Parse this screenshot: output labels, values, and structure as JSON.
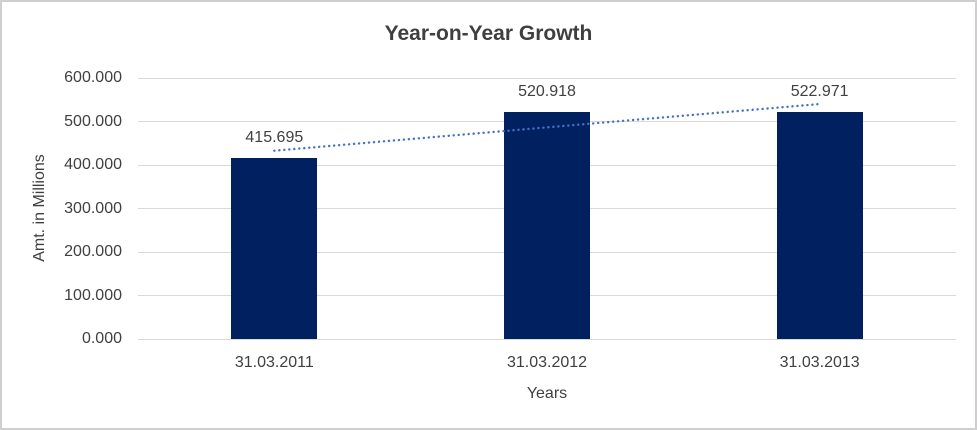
{
  "window": {
    "background": "#ffffff",
    "border_color": "#d0cece"
  },
  "chart_data": {
    "type": "bar",
    "title": "Year-on-Year Growth",
    "xlabel": "Years",
    "ylabel": "Amt. in Millions",
    "categories": [
      "31.03.2011",
      "31.03.2012",
      "31.03.2013"
    ],
    "values": [
      415.695,
      520.918,
      522.971
    ],
    "data_labels": [
      "415.695",
      "520.918",
      "522.971"
    ],
    "ylim": [
      0,
      600
    ],
    "ytick_step": 100,
    "ytick_labels": [
      "0.000",
      "100.000",
      "200.000",
      "300.000",
      "400.000",
      "500.000",
      "600.000"
    ],
    "grid": true,
    "legend": "none",
    "bar_color": "#002060",
    "gridline_color": "#d9d9d9",
    "text_color": "#404040",
    "title_color": "#3f3f3f",
    "trendline": {
      "type": "linear",
      "style": "dotted",
      "color": "#4472c4"
    }
  }
}
